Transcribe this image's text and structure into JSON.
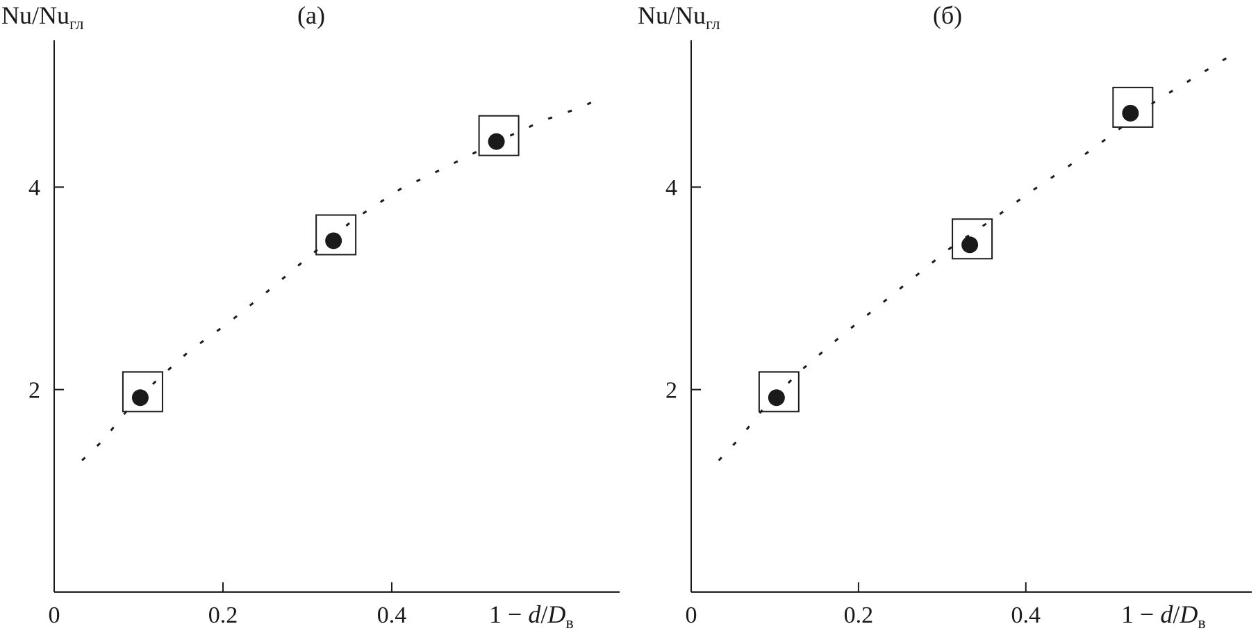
{
  "chart_data": [
    {
      "type": "scatter",
      "panel_label": "(a)",
      "ylabel": "Nu/Nu",
      "ylabel_sub": "гл",
      "xlabel_prefix": "1 − ",
      "xlabel_d": "d",
      "xlabel_slash": "/",
      "xlabel_D": "D",
      "xlabel_sub": "в",
      "x_ticks": [
        0,
        0.2,
        0.4
      ],
      "x_tick_labels": [
        "0",
        "0.2",
        "0.4"
      ],
      "y_ticks": [
        2,
        4
      ],
      "y_tick_labels": [
        "2",
        "4"
      ],
      "xlim": [
        0,
        0.67
      ],
      "ylim": [
        0,
        5.45
      ],
      "series": [
        {
          "marker": "filled-circle-in-square",
          "x": [
            0.102,
            0.331,
            0.524
          ],
          "y": [
            1.92,
            3.47,
            4.45
          ]
        },
        {
          "marker": "dashed-line",
          "x": [
            0.033,
            0.058,
            0.085,
            0.12,
            0.16,
            0.205,
            0.25,
            0.3,
            0.355,
            0.41,
            0.46,
            0.52,
            0.58,
            0.625,
            0.652
          ],
          "y": [
            1.3,
            1.5,
            1.78,
            2.08,
            2.38,
            2.65,
            2.95,
            3.3,
            3.68,
            3.98,
            4.18,
            4.43,
            4.66,
            4.79,
            4.9
          ]
        }
      ]
    },
    {
      "type": "scatter",
      "panel_label": "(б)",
      "ylabel": "Nu/Nu",
      "ylabel_sub": "гл",
      "xlabel_prefix": "1 − ",
      "xlabel_d": "d",
      "xlabel_slash": "/",
      "xlabel_D": "D",
      "xlabel_sub": "в",
      "x_ticks": [
        0,
        0.2,
        0.4
      ],
      "x_tick_labels": [
        "0",
        "0.2",
        "0.4"
      ],
      "y_ticks": [
        2,
        4
      ],
      "y_tick_labels": [
        "2",
        "4"
      ],
      "xlim": [
        0,
        0.67
      ],
      "ylim": [
        0,
        5.45
      ],
      "series": [
        {
          "marker": "filled-circle-in-square",
          "x": [
            0.102,
            0.333,
            0.525
          ],
          "y": [
            1.92,
            3.43,
            4.73
          ]
        },
        {
          "marker": "dashed-line",
          "x": [
            0.033,
            0.058,
            0.09,
            0.13,
            0.175,
            0.22,
            0.265,
            0.31,
            0.36,
            0.405,
            0.45,
            0.5,
            0.555,
            0.605,
            0.655
          ],
          "y": [
            1.3,
            1.52,
            1.85,
            2.18,
            2.5,
            2.8,
            3.1,
            3.4,
            3.68,
            3.95,
            4.2,
            4.5,
            4.85,
            5.1,
            5.35
          ]
        }
      ]
    }
  ]
}
